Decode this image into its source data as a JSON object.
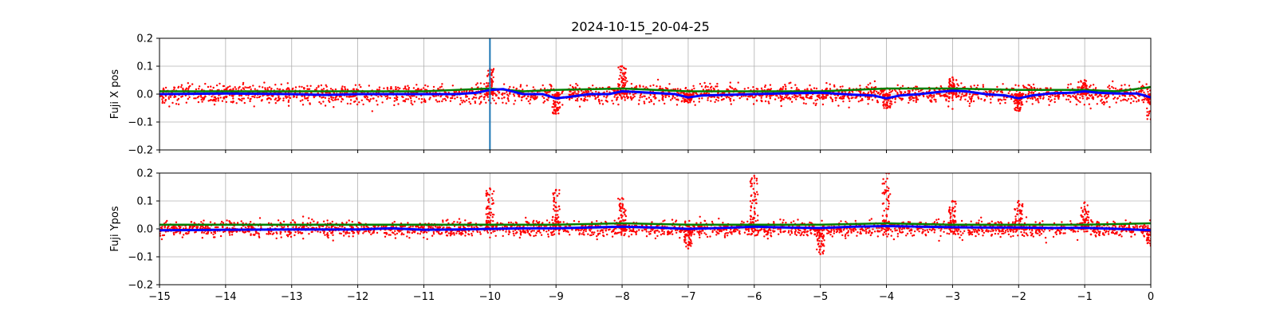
{
  "title": "2024-10-15_20-04-25",
  "colors": {
    "scatter": "#ff0000",
    "green_trace": "#008000",
    "blue_trace": "#0000ff",
    "marker_line": "#1f77b4",
    "grid": "#b0b0b0"
  },
  "chart_data": [
    {
      "type": "scatter",
      "ylabel": "Fuji X pos",
      "xlim": [
        -15,
        0
      ],
      "ylim": [
        -0.2,
        0.2
      ],
      "grid": true,
      "x_ticks": [
        -15,
        -14,
        -13,
        -12,
        -11,
        -10,
        -9,
        -8,
        -7,
        -6,
        -5,
        -4,
        -3,
        -2,
        -1,
        0
      ],
      "x_tick_labels_visible": false,
      "y_ticks": [
        -0.2,
        -0.1,
        0.0,
        0.1,
        0.2
      ],
      "y_tick_labels": [
        "−0.2",
        "−0.1",
        "0.0",
        "0.1",
        "0.2"
      ],
      "vertical_marker_x": -10,
      "scatter": {
        "center": 0.0,
        "spread": 0.03
      },
      "spikes": [
        {
          "x": -10,
          "amp": 0.09
        },
        {
          "x": -9,
          "amp": -0.07
        },
        {
          "x": -8,
          "amp": 0.1
        },
        {
          "x": -7,
          "amp": -0.03
        },
        {
          "x": -4,
          "amp": -0.05
        },
        {
          "x": -3,
          "amp": 0.06
        },
        {
          "x": -2,
          "amp": -0.06
        },
        {
          "x": -1,
          "amp": 0.05
        },
        {
          "x": 0,
          "amp": -0.09
        }
      ],
      "series": [
        {
          "color": "green",
          "x": [
            -15,
            -13,
            -11,
            -10,
            -9.5,
            -9,
            -8,
            -7,
            -6,
            -5,
            -4,
            -3,
            -2,
            -1,
            -0.5,
            0
          ],
          "values": [
            0.01,
            0.01,
            0.01,
            0.02,
            0.01,
            0.015,
            0.02,
            0.01,
            0.01,
            0.01,
            0.02,
            0.02,
            0.015,
            0.015,
            0.01,
            0.025
          ]
        },
        {
          "color": "blue",
          "x": [
            -15,
            -14,
            -13,
            -12.5,
            -12,
            -11,
            -10.5,
            -10.2,
            -10,
            -9.8,
            -9.5,
            -9.2,
            -9,
            -8.8,
            -8.5,
            -8.2,
            -8,
            -7.8,
            -7.2,
            -7,
            -6.8,
            -6,
            -5.5,
            -5,
            -4.5,
            -4.2,
            -4,
            -3.8,
            -3.5,
            -3.2,
            -3,
            -2.8,
            -2.5,
            -2.2,
            -2,
            -1.8,
            -1.5,
            -1.2,
            -1,
            -0.8,
            -0.5,
            -0.2,
            0
          ],
          "values": [
            0.0,
            0.002,
            0.0,
            -0.003,
            0.0,
            0.0,
            0.0,
            0.005,
            0.015,
            0.018,
            0.0,
            0.0,
            -0.015,
            -0.01,
            0.0,
            0.0,
            0.01,
            0.008,
            0.0,
            -0.012,
            -0.005,
            0.0,
            0.003,
            0.005,
            -0.002,
            -0.005,
            -0.015,
            -0.005,
            0.0,
            0.008,
            0.012,
            0.01,
            0.0,
            -0.005,
            -0.015,
            -0.005,
            0.003,
            0.005,
            0.01,
            0.005,
            0.002,
            0.002,
            -0.012
          ]
        }
      ]
    },
    {
      "type": "scatter",
      "ylabel": "Fuji Ypos",
      "xlim": [
        -15,
        0
      ],
      "ylim": [
        -0.2,
        0.2
      ],
      "grid": true,
      "x_ticks": [
        -15,
        -14,
        -13,
        -12,
        -11,
        -10,
        -9,
        -8,
        -7,
        -6,
        -5,
        -4,
        -3,
        -2,
        -1,
        0
      ],
      "x_tick_labels": [
        "−15",
        "−14",
        "−13",
        "−12",
        "−11",
        "−10",
        "−9",
        "−8",
        "−7",
        "−6",
        "−5",
        "−4",
        "−3",
        "−2",
        "−1",
        "0"
      ],
      "y_ticks": [
        -0.2,
        -0.1,
        0.0,
        0.1,
        0.2
      ],
      "y_tick_labels": [
        "−0.2",
        "−0.1",
        "0.0",
        "0.1",
        "0.2"
      ],
      "scatter": {
        "center": 0.0,
        "spread": 0.025
      },
      "spikes": [
        {
          "x": -10,
          "amp": 0.145
        },
        {
          "x": -9,
          "amp": 0.14
        },
        {
          "x": -8,
          "amp": 0.11
        },
        {
          "x": -7,
          "amp": -0.07
        },
        {
          "x": -6,
          "amp": 0.19
        },
        {
          "x": -5,
          "amp": -0.09
        },
        {
          "x": -4,
          "amp": 0.2
        },
        {
          "x": -3,
          "amp": 0.1
        },
        {
          "x": -2,
          "amp": 0.1
        },
        {
          "x": -1,
          "amp": 0.095
        },
        {
          "x": 0,
          "amp": -0.06
        }
      ],
      "series": [
        {
          "color": "green",
          "x": [
            -15,
            -13,
            -11,
            -9,
            -8,
            -7,
            -6,
            -5,
            -4,
            -3,
            -2,
            -1,
            0
          ],
          "values": [
            0.015,
            0.015,
            0.015,
            0.015,
            0.02,
            0.015,
            0.015,
            0.015,
            0.02,
            0.015,
            0.015,
            0.015,
            0.02
          ]
        },
        {
          "color": "blue",
          "x": [
            -15,
            -14,
            -13,
            -12,
            -11.5,
            -11,
            -10.5,
            -10,
            -9.5,
            -9,
            -8.5,
            -8,
            -7.5,
            -7,
            -6.5,
            -6,
            -5.5,
            -5,
            -4.5,
            -4,
            -3.5,
            -3,
            -2.5,
            -2,
            -1.5,
            -1,
            -0.5,
            0
          ],
          "values": [
            -0.005,
            -0.003,
            -0.002,
            -0.002,
            0.002,
            -0.003,
            -0.002,
            0.0,
            0.002,
            0.002,
            0.005,
            0.008,
            0.005,
            0.0,
            0.003,
            0.008,
            0.005,
            0.003,
            0.008,
            0.01,
            0.008,
            0.006,
            0.005,
            0.005,
            0.003,
            0.004,
            0.0,
            -0.005
          ]
        }
      ]
    }
  ]
}
